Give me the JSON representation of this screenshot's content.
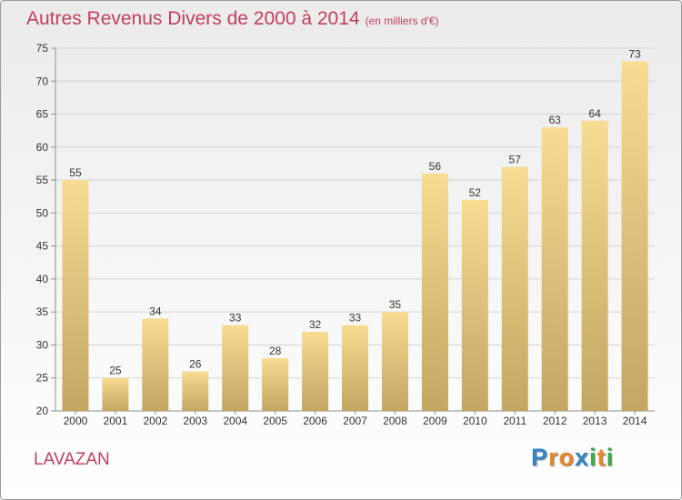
{
  "title": {
    "main": "Autres Revenus Divers de 2000 à 2014",
    "unit": "(en milliers d'€)"
  },
  "place": "LAVAZAN",
  "logo": {
    "text": "Proxiti",
    "letters": [
      {
        "ch": "P",
        "color": "#2e86c8"
      },
      {
        "ch": "r",
        "color": "#e8862a"
      },
      {
        "ch": "o",
        "color": "#e8862a"
      },
      {
        "ch": "x",
        "color": "#2e86c8"
      },
      {
        "ch": "i",
        "color": "#3aaa45"
      },
      {
        "ch": "t",
        "color": "#e8862a"
      },
      {
        "ch": "i",
        "color": "#3aaa45"
      }
    ]
  },
  "colors": {
    "title": "#c0405a",
    "bar_top": "#f8dc92",
    "bar_bottom": "#c2a662",
    "grid": "#d2d2d2",
    "axis": "#8c8c8c",
    "text": "#333333"
  },
  "chart_data": {
    "type": "bar",
    "categories": [
      "2000",
      "2001",
      "2002",
      "2003",
      "2004",
      "2005",
      "2006",
      "2007",
      "2008",
      "2009",
      "2010",
      "2011",
      "2012",
      "2013",
      "2014"
    ],
    "values": [
      55,
      25,
      34,
      26,
      33,
      28,
      32,
      33,
      35,
      56,
      52,
      57,
      63,
      64,
      73
    ],
    "data_labels": [
      "55",
      "25",
      "34",
      "26",
      "33",
      "28",
      "32",
      "33",
      "35",
      "56",
      "52",
      "57",
      "63",
      "64",
      "73"
    ],
    "yticks": [
      20,
      25,
      30,
      35,
      40,
      45,
      50,
      55,
      60,
      65,
      70,
      75
    ],
    "ylim": [
      20,
      75
    ],
    "grid": true,
    "legend": "none"
  }
}
